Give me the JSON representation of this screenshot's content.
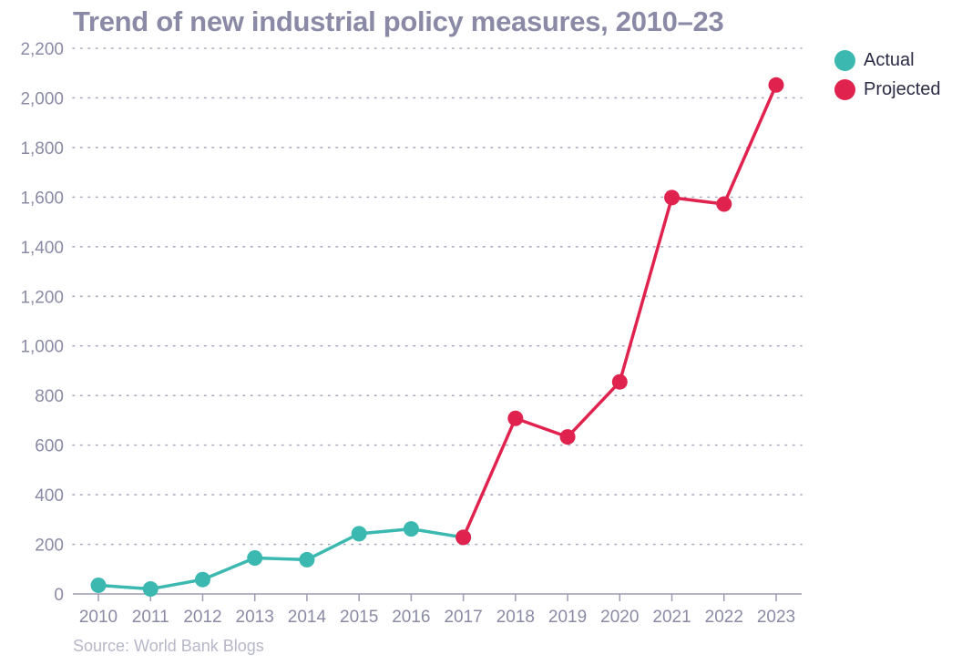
{
  "chart_data": {
    "type": "line",
    "title": "Trend of new industrial policy measures, 2010–23",
    "source": "Source: World Bank Blogs",
    "x": [
      2010,
      2011,
      2012,
      2013,
      2014,
      2015,
      2016,
      2017,
      2018,
      2019,
      2020,
      2021,
      2022,
      2023
    ],
    "x_tick_labels": [
      "2010",
      "2011",
      "2012",
      "2013",
      "2014",
      "2015",
      "2016",
      "2017",
      "2018",
      "2019",
      "2020",
      "2021",
      "2022",
      "2023"
    ],
    "y_tick_values": [
      0,
      200,
      400,
      600,
      800,
      1000,
      1200,
      1400,
      1600,
      1800,
      2000,
      2200
    ],
    "y_tick_labels": [
      "0",
      "200",
      "400",
      "600",
      "800",
      "1,000",
      "1,200",
      "1,400",
      "1,600",
      "1,800",
      "2,000",
      "2,200"
    ],
    "ylim": [
      0,
      2200
    ],
    "grid": "horizontal-dotted",
    "legend_position": "top-right",
    "series": [
      {
        "name": "Actual",
        "color": "#3bb8b0",
        "x": [
          2010,
          2011,
          2012,
          2013,
          2014,
          2015,
          2016,
          2017
        ],
        "values": [
          35,
          20,
          58,
          145,
          138,
          243,
          262,
          228
        ]
      },
      {
        "name": "Projected",
        "color": "#e0234e",
        "x": [
          2017,
          2018,
          2019,
          2020,
          2021,
          2022,
          2023
        ],
        "values": [
          228,
          708,
          633,
          855,
          1598,
          1572,
          2052
        ]
      }
    ]
  }
}
